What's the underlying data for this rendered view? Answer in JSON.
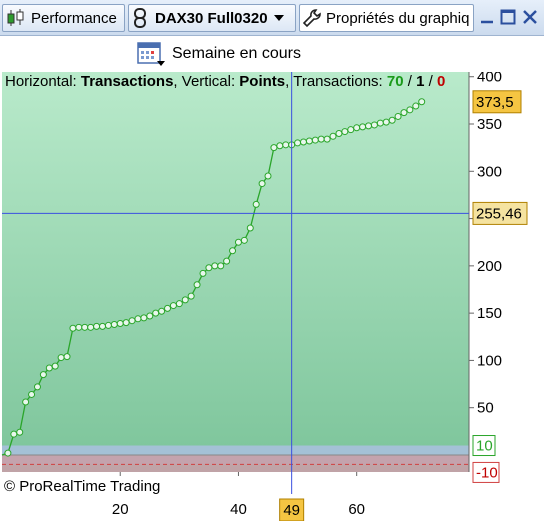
{
  "titlebar": {
    "performance_label": "Performance",
    "instrument_label": "DAX30 Full0320",
    "properties_label": "Propriétés du graphiq"
  },
  "toolbar": {
    "period_label": "Semaine en cours"
  },
  "header": {
    "horizontal_label": "Horizontal:",
    "horizontal_value": "Transactions",
    "vertical_label": "Vertical:",
    "vertical_value": "Points",
    "transactions_label": "Transactions:",
    "transactions_win": "70",
    "transactions_neutral": "1",
    "transactions_loss": "0",
    "sep": "/"
  },
  "copyright": "© ProRealTime Trading",
  "colors": {
    "accent_green": "#2aa52a",
    "crosshair": "#3a4fe0",
    "value_box": "#f5c542",
    "loss_red": "#c00000"
  },
  "chart_data": {
    "type": "line",
    "xlim": [
      0,
      79
    ],
    "ylim": [
      -18,
      405
    ],
    "x_ticks": [
      20,
      40,
      60
    ],
    "y_ticks": [
      400,
      350,
      300,
      250,
      200,
      150,
      100,
      50
    ],
    "band_labels": {
      "upper": "10",
      "lower": "-10"
    },
    "last_value_label": "373,5",
    "last_value": 373.5,
    "crosshair": {
      "x": 49,
      "x_label": "49",
      "y": 255.46,
      "y_label": "255,46"
    },
    "grid": false,
    "series": [
      {
        "x": [
          1,
          2,
          3,
          4,
          5,
          6,
          7,
          8,
          9,
          10,
          11,
          12,
          13,
          14,
          15,
          16,
          17,
          18,
          19,
          20,
          21,
          22,
          23,
          24,
          25,
          26,
          27,
          28,
          29,
          30,
          31,
          32,
          33,
          34,
          35,
          36,
          37,
          38,
          39,
          40,
          41,
          42,
          43,
          44,
          45,
          46,
          47,
          48,
          49,
          50,
          51,
          52,
          53,
          54,
          55,
          56,
          57,
          58,
          59,
          60,
          61,
          62,
          63,
          64,
          65,
          66,
          67,
          68,
          69,
          70,
          71
        ],
        "values": [
          2,
          22,
          24,
          56,
          64,
          72,
          85,
          92,
          94,
          103,
          104,
          134,
          135,
          135,
          135,
          136,
          136,
          137,
          138,
          139,
          140,
          142,
          144,
          145,
          147,
          150,
          152,
          155,
          158,
          160,
          164,
          168,
          180,
          192,
          198,
          200,
          200,
          205,
          216,
          225,
          227,
          240,
          265,
          287,
          295,
          325,
          327,
          328,
          328,
          330,
          331,
          332,
          333,
          334,
          334,
          337,
          340,
          342,
          344,
          346,
          347,
          348,
          349,
          351,
          352,
          354,
          358,
          362,
          365,
          369,
          373.5
        ]
      }
    ]
  }
}
